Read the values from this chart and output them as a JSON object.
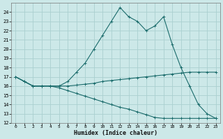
{
  "xlabel": "Humidex (Indice chaleur)",
  "ylabel": "",
  "background_color": "#cce8e8",
  "grid_color": "#aad0d0",
  "line_color": "#1a6b6b",
  "xlim": [
    -0.5,
    23.5
  ],
  "ylim": [
    12,
    25
  ],
  "yticks": [
    12,
    13,
    14,
    15,
    16,
    17,
    18,
    19,
    20,
    21,
    22,
    23,
    24
  ],
  "xticks": [
    0,
    1,
    2,
    3,
    4,
    5,
    6,
    7,
    8,
    9,
    10,
    11,
    12,
    13,
    14,
    15,
    16,
    17,
    18,
    19,
    20,
    21,
    22,
    23
  ],
  "series": [
    {
      "x": [
        0,
        1,
        2,
        3,
        4,
        5,
        6,
        7,
        8,
        9,
        10,
        11,
        12,
        13,
        14,
        15,
        16,
        17,
        18,
        19,
        20,
        21,
        22,
        23
      ],
      "y": [
        17,
        16.5,
        16,
        16,
        16,
        16,
        16.5,
        17.5,
        18.5,
        20,
        21.5,
        23,
        24.5,
        23.5,
        23,
        22,
        22.5,
        23.5,
        20.5,
        18,
        16,
        14,
        13,
        12.5
      ]
    },
    {
      "x": [
        0,
        1,
        2,
        3,
        4,
        5,
        6,
        7,
        8,
        9,
        10,
        11,
        12,
        13,
        14,
        15,
        16,
        17,
        18,
        19,
        20,
        21,
        22,
        23
      ],
      "y": [
        17,
        16.5,
        16,
        16,
        16,
        16,
        16,
        16.1,
        16.2,
        16.3,
        16.5,
        16.6,
        16.7,
        16.8,
        16.9,
        17.0,
        17.1,
        17.2,
        17.3,
        17.4,
        17.5,
        17.5,
        17.5,
        17.5
      ]
    },
    {
      "x": [
        0,
        1,
        2,
        3,
        4,
        5,
        6,
        7,
        8,
        9,
        10,
        11,
        12,
        13,
        14,
        15,
        16,
        17,
        18,
        19,
        20,
        21,
        22,
        23
      ],
      "y": [
        17,
        16.5,
        16,
        16,
        16,
        15.8,
        15.5,
        15.2,
        14.9,
        14.6,
        14.3,
        14.0,
        13.7,
        13.5,
        13.2,
        12.9,
        12.6,
        12.5,
        12.5,
        12.5,
        12.5,
        12.5,
        12.5,
        12.5
      ]
    }
  ]
}
